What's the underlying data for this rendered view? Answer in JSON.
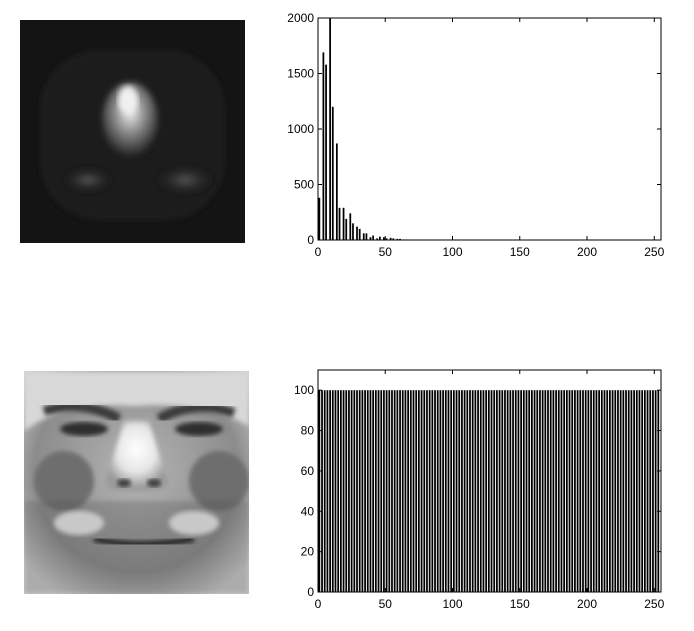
{
  "chart_data": [
    {
      "type": "bar",
      "title": "",
      "xlabel": "",
      "ylabel": "",
      "xlim": [
        0,
        255
      ],
      "ylim": [
        0,
        2000
      ],
      "x_ticks": [
        0,
        50,
        100,
        150,
        200,
        250
      ],
      "y_ticks": [
        0,
        500,
        1000,
        1500,
        2000
      ],
      "bar_color": "#000000",
      "bars": [
        {
          "x": 1,
          "y": 380
        },
        {
          "x": 4,
          "y": 1690
        },
        {
          "x": 6,
          "y": 1580
        },
        {
          "x": 9,
          "y": 2000
        },
        {
          "x": 11,
          "y": 1200
        },
        {
          "x": 14,
          "y": 870
        },
        {
          "x": 16,
          "y": 290
        },
        {
          "x": 19,
          "y": 290
        },
        {
          "x": 21,
          "y": 190
        },
        {
          "x": 24,
          "y": 240
        },
        {
          "x": 26,
          "y": 150
        },
        {
          "x": 29,
          "y": 120
        },
        {
          "x": 31,
          "y": 100
        },
        {
          "x": 34,
          "y": 60
        },
        {
          "x": 36,
          "y": 60
        },
        {
          "x": 39,
          "y": 25
        },
        {
          "x": 41,
          "y": 40
        },
        {
          "x": 44,
          "y": 15
        },
        {
          "x": 46,
          "y": 30
        },
        {
          "x": 49,
          "y": 25
        },
        {
          "x": 51,
          "y": 15
        },
        {
          "x": 54,
          "y": 20
        },
        {
          "x": 56,
          "y": 15
        },
        {
          "x": 59,
          "y": 10
        },
        {
          "x": 61,
          "y": 10
        },
        {
          "x": 64,
          "y": 5
        },
        {
          "x": 66,
          "y": 5
        },
        {
          "x": 69,
          "y": 3
        }
      ]
    },
    {
      "type": "bar",
      "title": "",
      "xlabel": "",
      "ylabel": "",
      "xlim": [
        0,
        255
      ],
      "ylim": [
        0,
        110
      ],
      "x_ticks": [
        0,
        50,
        100,
        150,
        200,
        250
      ],
      "y_ticks": [
        0,
        20,
        40,
        60,
        80,
        100
      ],
      "bar_color": "#000000",
      "bars_uniform": {
        "x_start": 1,
        "x_end": 254,
        "x_step": 2,
        "y": 100
      }
    }
  ],
  "images": [
    {
      "name": "dark-face",
      "description_tone": "dark"
    },
    {
      "name": "equalized-face",
      "description_tone": "equalized"
    }
  ]
}
